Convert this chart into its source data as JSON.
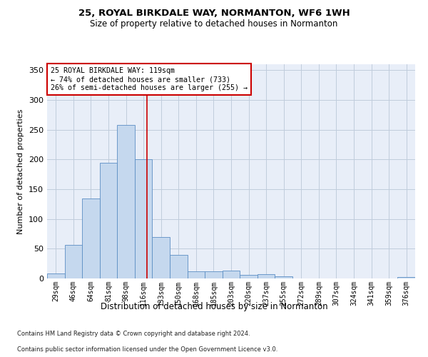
{
  "title1": "25, ROYAL BIRKDALE WAY, NORMANTON, WF6 1WH",
  "title2": "Size of property relative to detached houses in Normanton",
  "xlabel": "Distribution of detached houses by size in Normanton",
  "ylabel": "Number of detached properties",
  "bin_labels": [
    "29sqm",
    "46sqm",
    "64sqm",
    "81sqm",
    "98sqm",
    "116sqm",
    "133sqm",
    "150sqm",
    "168sqm",
    "185sqm",
    "203sqm",
    "220sqm",
    "237sqm",
    "255sqm",
    "272sqm",
    "289sqm",
    "307sqm",
    "324sqm",
    "341sqm",
    "359sqm",
    "376sqm"
  ],
  "bar_heights": [
    8,
    57,
    135,
    195,
    258,
    200,
    70,
    40,
    12,
    12,
    13,
    6,
    7,
    4,
    0,
    0,
    0,
    0,
    0,
    0,
    2
  ],
  "bar_color": "#c5d8ee",
  "bar_edge_color": "#5b8ec4",
  "bar_width": 1.0,
  "vline_x": 5.18,
  "vline_color": "#cc0000",
  "ylim": [
    0,
    360
  ],
  "yticks": [
    0,
    50,
    100,
    150,
    200,
    250,
    300,
    350
  ],
  "annotation_text": "25 ROYAL BIRKDALE WAY: 119sqm\n← 74% of detached houses are smaller (733)\n26% of semi-detached houses are larger (255) →",
  "footer1": "Contains HM Land Registry data © Crown copyright and database right 2024.",
  "footer2": "Contains public sector information licensed under the Open Government Licence v3.0.",
  "bg_color": "#ffffff",
  "plot_bg_color": "#e8eef8",
  "grid_color": "#c0ccdc",
  "annotation_box_color": "#ffffff",
  "annotation_box_edgecolor": "#cc0000",
  "title1_fontsize": 9.5,
  "title2_fontsize": 8.5,
  "ylabel_fontsize": 8,
  "xlabel_fontsize": 8.5,
  "tick_fontsize": 7,
  "annot_fontsize": 7.2,
  "footer_fontsize": 6
}
